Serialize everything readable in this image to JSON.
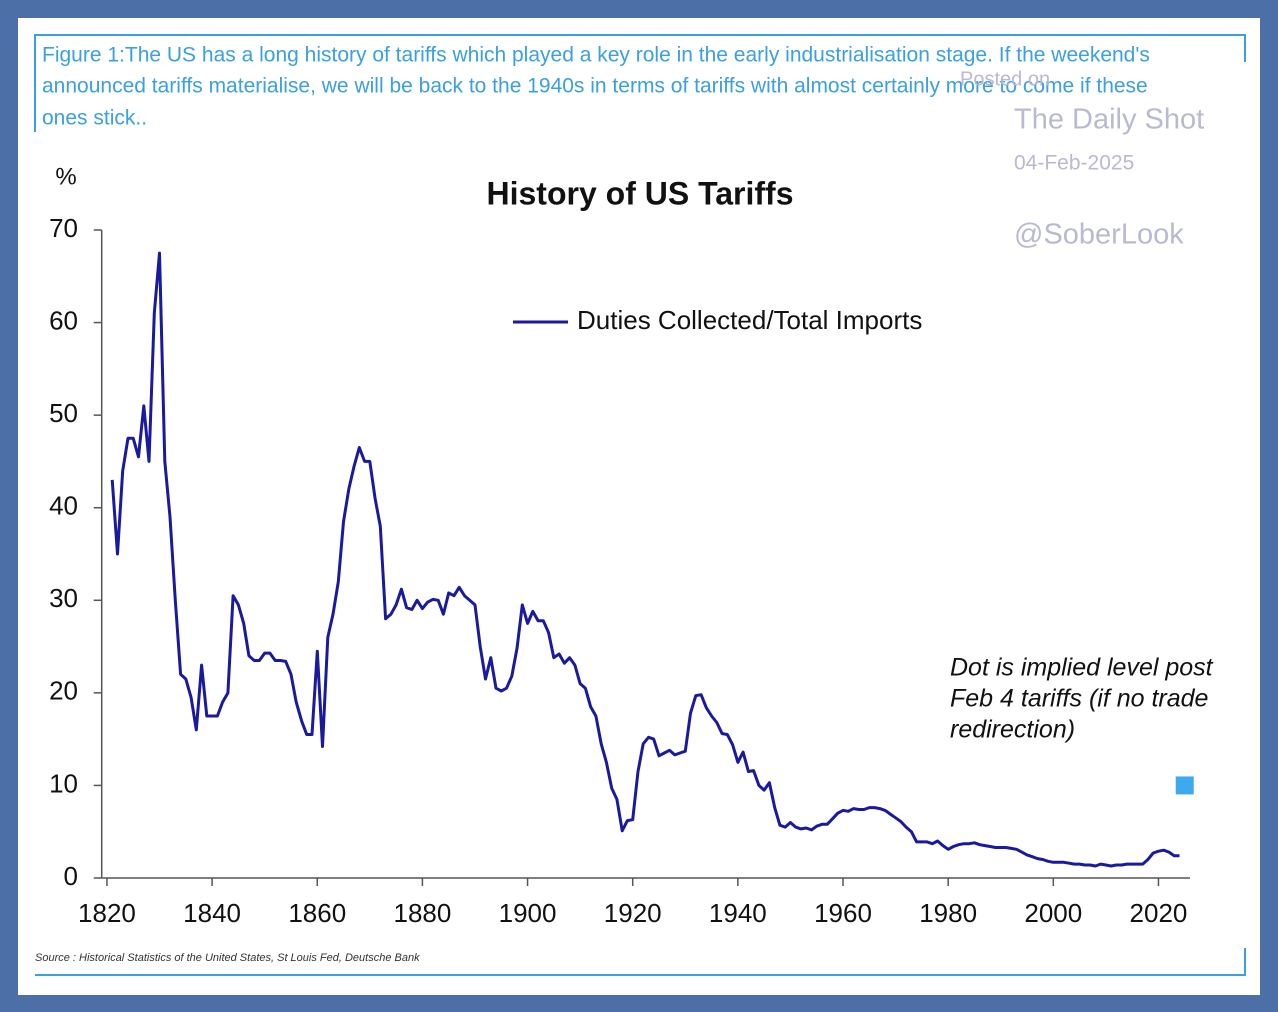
{
  "chart_data": {
    "type": "line",
    "caption": [
      "Figure 1:The US has a long history of tariffs which played a key role in the early industrialisation stage. If the weekend's",
      "announced tariffs materialise, we will be back to the 1940s in terms of tariffs with almost certainly more to come if these",
      "ones stick.."
    ],
    "watermark": [
      "Posted on",
      "The Daily Shot",
      "04-Feb-2025",
      "@SoberLook"
    ],
    "title": "History of US Tariffs",
    "y_label": "%",
    "annotation": [
      "Dot is implied level post",
      "Feb 4 tariffs (if no trade",
      "redirection)"
    ],
    "source": "Source : Historical Statistics of the United States, St Louis Fed, Deutsche Bank",
    "legend": "upper center",
    "xlim": [
      1819,
      2026
    ],
    "xticks": [
      1820,
      1840,
      1860,
      1880,
      1900,
      1920,
      1940,
      1960,
      1980,
      2000,
      2020
    ],
    "ylim": [
      0,
      70
    ],
    "yticks": [
      0,
      10,
      20,
      30,
      40,
      50,
      60,
      70
    ],
    "x": [
      1821,
      1822,
      1823,
      1824,
      1825,
      1826,
      1827,
      1828,
      1829,
      1830,
      1831,
      1832,
      1833,
      1834,
      1835,
      1836,
      1837,
      1838,
      1839,
      1840,
      1841,
      1842,
      1843,
      1844,
      1845,
      1846,
      1847,
      1848,
      1849,
      1850,
      1851,
      1852,
      1853,
      1854,
      1855,
      1856,
      1857,
      1858,
      1859,
      1860,
      1861,
      1862,
      1863,
      1864,
      1865,
      1866,
      1867,
      1868,
      1869,
      1870,
      1871,
      1872,
      1873,
      1874,
      1875,
      1876,
      1877,
      1878,
      1879,
      1880,
      1881,
      1882,
      1883,
      1884,
      1885,
      1886,
      1887,
      1888,
      1889,
      1890,
      1891,
      1892,
      1893,
      1894,
      1895,
      1896,
      1897,
      1898,
      1899,
      1900,
      1901,
      1902,
      1903,
      1904,
      1905,
      1906,
      1907,
      1908,
      1909,
      1910,
      1911,
      1912,
      1913,
      1914,
      1915,
      1916,
      1917,
      1918,
      1919,
      1920,
      1921,
      1922,
      1923,
      1924,
      1925,
      1926,
      1927,
      1928,
      1929,
      1930,
      1931,
      1932,
      1933,
      1934,
      1935,
      1936,
      1937,
      1938,
      1939,
      1940,
      1941,
      1942,
      1943,
      1944,
      1945,
      1946,
      1947,
      1948,
      1949,
      1950,
      1951,
      1952,
      1953,
      1954,
      1955,
      1956,
      1957,
      1958,
      1959,
      1960,
      1961,
      1962,
      1963,
      1964,
      1965,
      1966,
      1967,
      1968,
      1969,
      1970,
      1971,
      1972,
      1973,
      1974,
      1975,
      1976,
      1977,
      1978,
      1979,
      1980,
      1981,
      1982,
      1983,
      1984,
      1985,
      1986,
      1987,
      1988,
      1989,
      1990,
      1991,
      1992,
      1993,
      1994,
      1995,
      1996,
      1997,
      1998,
      1999,
      2000,
      2001,
      2002,
      2003,
      2004,
      2005,
      2006,
      2007,
      2008,
      2009,
      2010,
      2011,
      2012,
      2013,
      2014,
      2015,
      2016,
      2017,
      2018,
      2019,
      2020,
      2021,
      2022,
      2023,
      2024
    ],
    "series": [
      {
        "name": "Duties Collected/Total Imports",
        "color": "#1a1a9e",
        "values": [
          43,
          35,
          44,
          47.5,
          47.5,
          45.5,
          51,
          45,
          61,
          67.5,
          45,
          39,
          30,
          22,
          21.5,
          19.5,
          16,
          23,
          17.5,
          17.5,
          17.5,
          19,
          20,
          30.5,
          29.5,
          27.5,
          24,
          23.5,
          23.5,
          24.3,
          24.3,
          23.5,
          23.5,
          23.4,
          22,
          19,
          17,
          15.5,
          15.5,
          24.5,
          14.2,
          26,
          28.5,
          32,
          38.5,
          42,
          44.5,
          46.5,
          45,
          45,
          41,
          38,
          28,
          28.5,
          29.5,
          31.2,
          29.2,
          29,
          30,
          29.1,
          29.8,
          30.1,
          30,
          28.5,
          30.8,
          30.5,
          31.4,
          30.5,
          30,
          29.5,
          25,
          21.5,
          23.8,
          20.5,
          20.2,
          20.5,
          21.8,
          24.8,
          29.5,
          27.5,
          28.8,
          27.8,
          27.8,
          26.5,
          23.8,
          24.2,
          23.2,
          23.8,
          23,
          21,
          20.5,
          18.5,
          17.5,
          14.5,
          12.5,
          9.7,
          8.5,
          5.1,
          6.2,
          6.3,
          11.5,
          14.5,
          15.2,
          15,
          13.2,
          13.5,
          13.8,
          13.3,
          13.5,
          13.7,
          17.8,
          19.7,
          19.8,
          18.4,
          17.5,
          16.8,
          15.6,
          15.5,
          14.4,
          12.5,
          13.6,
          11.5,
          11.6,
          10,
          9.5,
          10.3,
          7.6,
          5.7,
          5.5,
          6,
          5.5,
          5.3,
          5.4,
          5.2,
          5.6,
          5.8,
          5.8,
          6.4,
          7,
          7.3,
          7.2,
          7.5,
          7.4,
          7.4,
          7.6,
          7.6,
          7.5,
          7.3,
          6.9,
          6.5,
          6.1,
          5.5,
          5,
          3.9,
          3.9,
          3.9,
          3.7,
          4,
          3.5,
          3.1,
          3.4,
          3.6,
          3.7,
          3.7,
          3.8,
          3.6,
          3.5,
          3.4,
          3.3,
          3.3,
          3.3,
          3.2,
          3.1,
          2.8,
          2.5,
          2.3,
          2.1,
          2,
          1.8,
          1.7,
          1.7,
          1.7,
          1.6,
          1.5,
          1.5,
          1.4,
          1.4,
          1.3,
          1.5,
          1.4,
          1.3,
          1.4,
          1.4,
          1.5,
          1.5,
          1.5,
          1.5,
          2,
          2.7,
          2.9,
          3,
          2.8,
          2.4,
          2.4
        ]
      }
    ],
    "implied_point": {
      "x": 2025,
      "value": 10,
      "color": "#3fa9f0"
    }
  }
}
